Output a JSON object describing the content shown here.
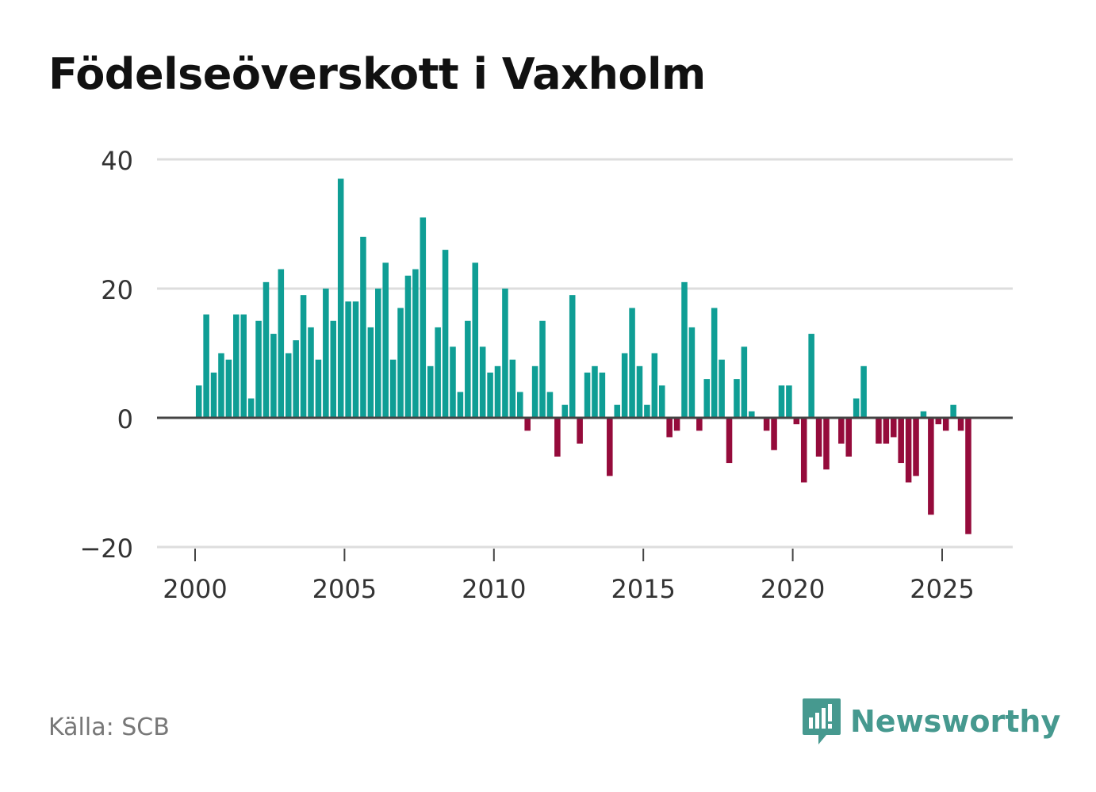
{
  "header": {
    "title": "Födelseöverskott i Vaxholm"
  },
  "footer": {
    "source": "Källa: SCB",
    "brand": "Newsworthy",
    "brand_icon": "newsworthy-logo-icon"
  },
  "colors": {
    "positive": "#0f9e95",
    "negative": "#950b3b",
    "grid": "#dddddd",
    "zero_line": "#444444",
    "text": "#333333",
    "brand": "#46998f"
  },
  "chart_data": {
    "type": "bar",
    "title": "Födelseöverskott i Vaxholm",
    "xlabel": "",
    "ylabel": "",
    "ylim": [
      -20,
      40
    ],
    "yticks": [
      40,
      20,
      0,
      -20
    ],
    "ytick_labels": [
      "40",
      "20",
      "0",
      "−20"
    ],
    "xlim": [
      1999.5,
      2027.3
    ],
    "xticks": [
      2000,
      2005,
      2010,
      2015,
      2020,
      2025
    ],
    "xtick_labels": [
      "2000",
      "2005",
      "2010",
      "2015",
      "2020",
      "2025"
    ],
    "grid": true,
    "start_year": 2000,
    "periods_per_year": 4,
    "values": [
      5,
      16,
      7,
      10,
      9,
      16,
      16,
      3,
      15,
      21,
      13,
      23,
      10,
      12,
      19,
      14,
      9,
      20,
      15,
      37,
      18,
      18,
      28,
      14,
      20,
      24,
      9,
      17,
      22,
      23,
      31,
      8,
      14,
      26,
      11,
      4,
      15,
      24,
      11,
      7,
      8,
      20,
      9,
      4,
      -2,
      8,
      15,
      4,
      -6,
      2,
      19,
      -4,
      7,
      8,
      7,
      -9,
      2,
      10,
      17,
      8,
      2,
      10,
      5,
      -3,
      -2,
      21,
      14,
      -2,
      6,
      17,
      9,
      -7,
      6,
      11,
      1,
      0,
      -2,
      -5,
      5,
      5,
      -1,
      -10,
      13,
      -6,
      -8,
      0,
      -4,
      -6,
      3,
      8,
      0,
      -4,
      -4,
      -3,
      -7,
      -10,
      -9,
      1,
      -15,
      -1,
      -2,
      2,
      -2,
      -18
    ]
  }
}
